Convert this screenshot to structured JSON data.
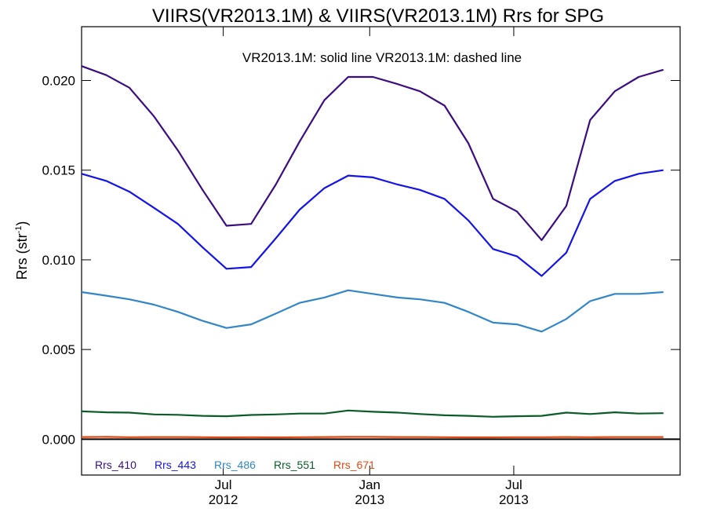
{
  "chart_data": {
    "type": "line",
    "title": "VIIRS(VR2013.1M) & VIIRS(VR2013.1M)  Rrs for SPG",
    "annotation": "VR2013.1M: solid line   VR2013.1M: dashed line",
    "ylabel_main": "Rrs (str",
    "ylabel_sup": "-1",
    "ylabel_close": ")",
    "ylim": [
      -0.002,
      0.023
    ],
    "yticks": [
      {
        "value": 0.0,
        "label": "0.000"
      },
      {
        "value": 0.005,
        "label": "0.005"
      },
      {
        "value": 0.01,
        "label": "0.010"
      },
      {
        "value": 0.015,
        "label": "0.015"
      },
      {
        "value": 0.02,
        "label": "0.020"
      }
    ],
    "xlim": [
      "2012-01-05",
      "2014-01-26"
    ],
    "xticks": [
      {
        "date": "2012-07-01",
        "month": "Jul",
        "year": "2012"
      },
      {
        "date": "2013-01-01",
        "month": "Jan",
        "year": "2013"
      },
      {
        "date": "2013-07-01",
        "month": "Jul",
        "year": "2013"
      }
    ],
    "x": [
      "2012-01-05",
      "2012-02-05",
      "2012-03-05",
      "2012-04-05",
      "2012-05-05",
      "2012-06-05",
      "2012-07-05",
      "2012-08-05",
      "2012-09-05",
      "2012-10-05",
      "2012-11-05",
      "2012-12-05",
      "2013-01-05",
      "2013-02-05",
      "2013-03-05",
      "2013-04-05",
      "2013-05-05",
      "2013-06-05",
      "2013-07-05",
      "2013-08-05",
      "2013-09-05",
      "2013-10-05",
      "2013-11-05",
      "2013-12-05",
      "2014-01-05"
    ],
    "series": [
      {
        "name": "Rrs_410",
        "color": "#3a0d80",
        "values": [
          0.0208,
          0.0203,
          0.0196,
          0.018,
          0.0161,
          0.0139,
          0.0119,
          0.012,
          0.0142,
          0.0166,
          0.0189,
          0.0202,
          0.0202,
          0.0198,
          0.0194,
          0.0186,
          0.0165,
          0.0134,
          0.0127,
          0.0111,
          0.013,
          0.0178,
          0.0194,
          0.0202,
          0.0206
        ]
      },
      {
        "name": "Rrs_443",
        "color": "#1414e6",
        "values": [
          0.0148,
          0.0144,
          0.0138,
          0.0129,
          0.012,
          0.0107,
          0.0095,
          0.0096,
          0.0112,
          0.0128,
          0.014,
          0.0147,
          0.0146,
          0.0142,
          0.0139,
          0.0134,
          0.0122,
          0.0106,
          0.0102,
          0.0091,
          0.0104,
          0.0134,
          0.0144,
          0.0148,
          0.015
        ]
      },
      {
        "name": "Rrs_486",
        "color": "#3286c8",
        "values": [
          0.0082,
          0.008,
          0.0078,
          0.0075,
          0.0071,
          0.0066,
          0.0062,
          0.0064,
          0.007,
          0.0076,
          0.0079,
          0.0083,
          0.0081,
          0.0079,
          0.0078,
          0.0076,
          0.0071,
          0.0065,
          0.0064,
          0.006,
          0.0067,
          0.0077,
          0.0081,
          0.0081,
          0.0082
        ]
      },
      {
        "name": "Rrs_551",
        "color": "#0a5c28",
        "values": [
          0.00155,
          0.0015,
          0.00148,
          0.00138,
          0.00136,
          0.0013,
          0.00128,
          0.00135,
          0.00138,
          0.00143,
          0.00143,
          0.0016,
          0.00153,
          0.00148,
          0.0014,
          0.00133,
          0.0013,
          0.00125,
          0.00128,
          0.0013,
          0.00148,
          0.0014,
          0.0015,
          0.00143,
          0.00145
        ]
      },
      {
        "name": "Rrs_671",
        "color": "#e04810",
        "values": [
          0.00012,
          0.00013,
          0.00011,
          0.00012,
          0.00012,
          0.00011,
          0.0001,
          0.00011,
          0.0001,
          0.00011,
          0.00012,
          0.00013,
          0.00013,
          0.00012,
          0.00012,
          0.00011,
          0.0001,
          0.0001,
          0.00011,
          0.00011,
          0.00012,
          0.00011,
          0.00012,
          0.00012,
          0.00012
        ]
      }
    ],
    "zero_line": true,
    "grid": false,
    "legend_placement": "bottom-left"
  }
}
